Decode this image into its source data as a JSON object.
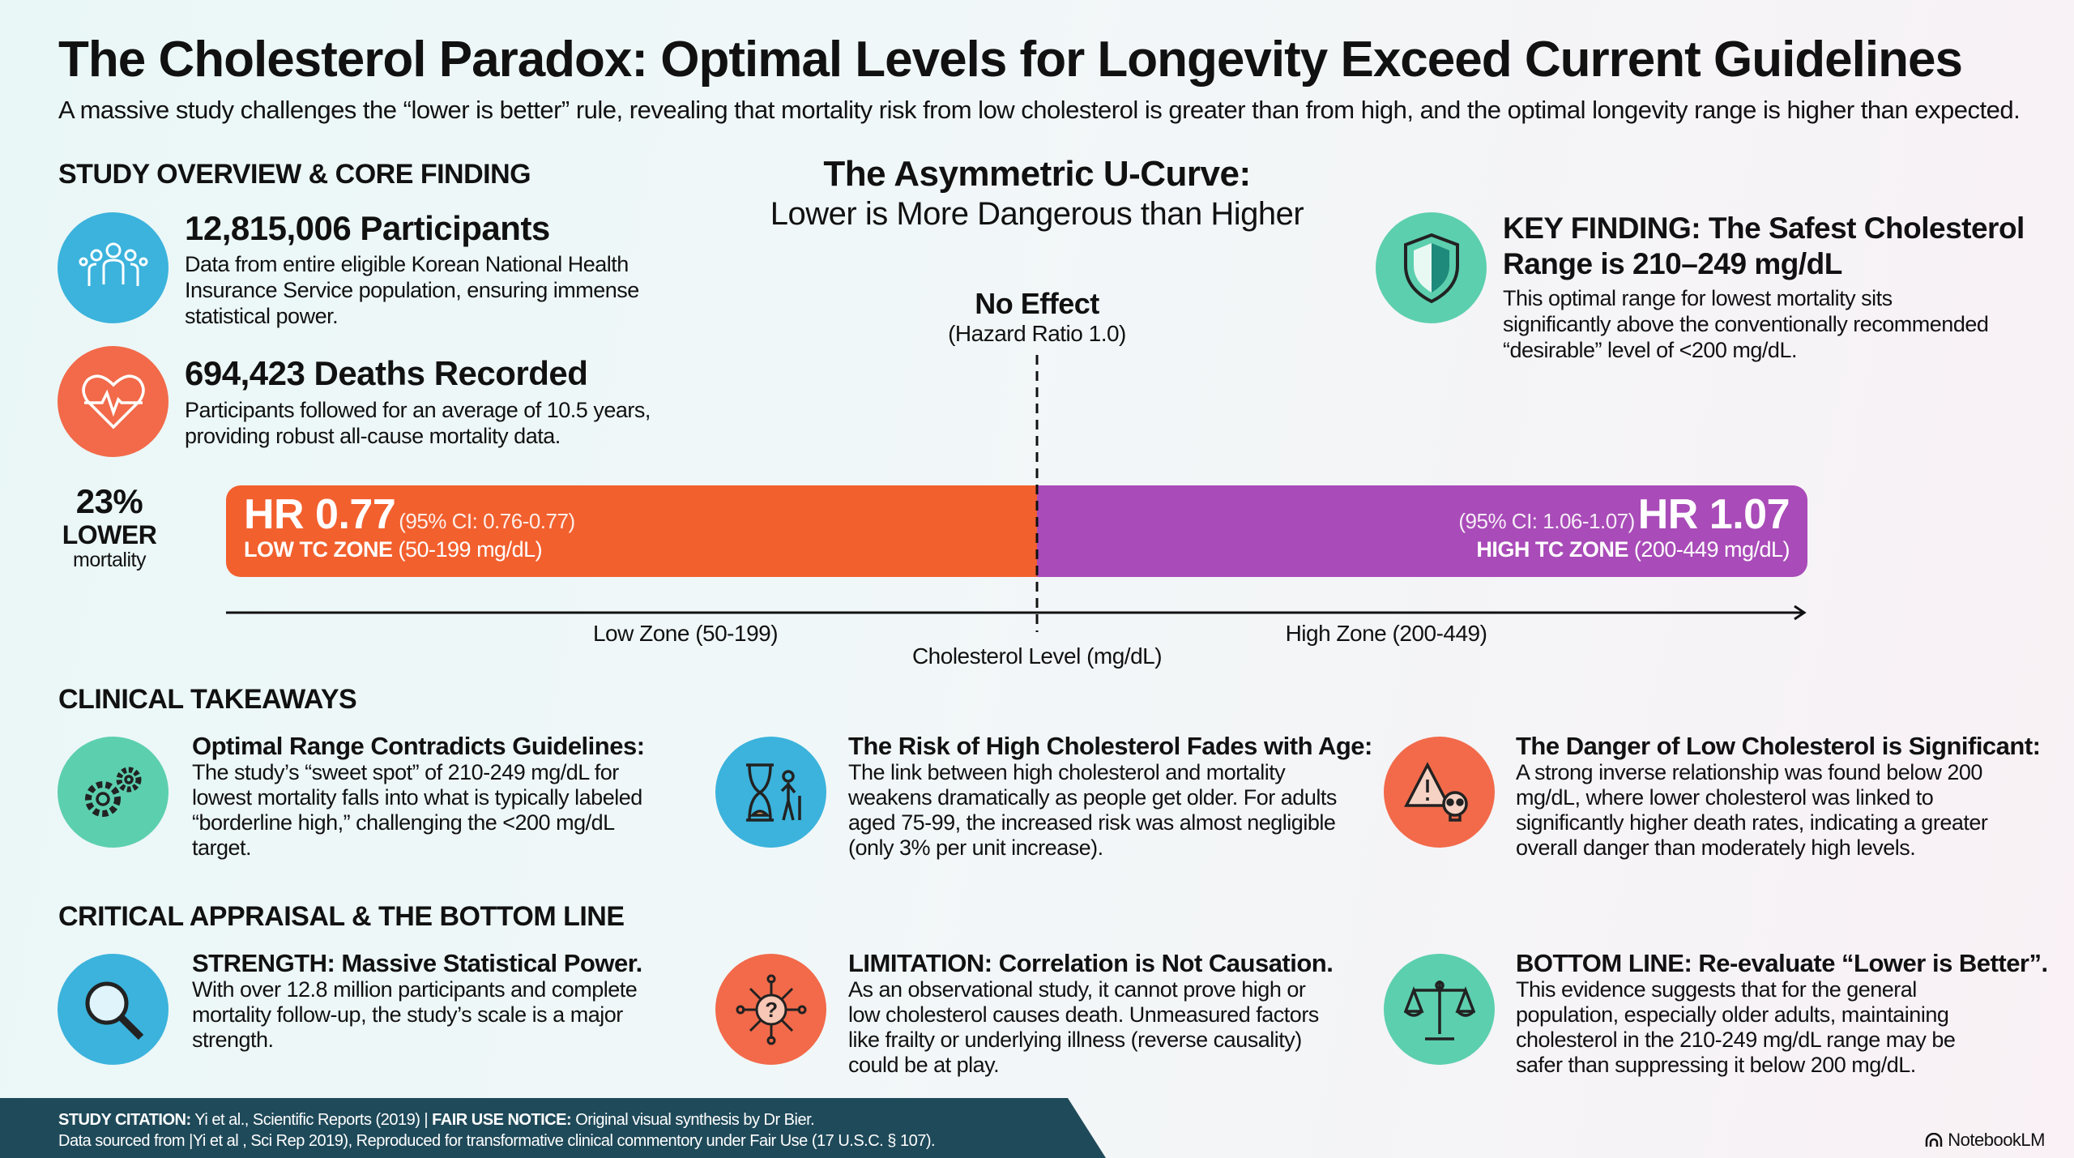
{
  "title": "The Cholesterol Paradox: Optimal Levels for Longevity Exceed Current Guidelines",
  "subtitle": "A massive study challenges the “lower is better” rule, revealing that mortality risk from low cholesterol is greater than from high, and the optimal longevity range is higher than expected.",
  "overview": {
    "heading": "STUDY OVERVIEW & CORE FINDING",
    "participants": {
      "title": "12,815,006 Participants",
      "text": "Data from entire eligible Korean National Health Insurance Service population, ensuring immense statistical power.",
      "icon": "people-group-icon"
    },
    "deaths": {
      "title": "694,423 Deaths Recorded",
      "text": "Participants followed for an average of 10.5 years, providing robust all-cause mortality data.",
      "icon": "heart-pulse-icon"
    }
  },
  "curve": {
    "title": "The Asymmetric U-Curve:",
    "subtitle": "Lower is More Dangerous than Higher",
    "no_effect": "No Effect",
    "no_effect_sub": "(Hazard Ratio 1.0)"
  },
  "key_finding": {
    "title1": "KEY FINDING: The Safest Cholesterol",
    "title2": "Range is 210–249 mg/dL",
    "text": "This optimal range for lowest mortality sits significantly above the conventionally recommended “desirable” level of <200 mg/dL.",
    "icon": "shield-icon"
  },
  "lower_stat": {
    "pct": "23%",
    "label": "LOWER",
    "sub": "mortality"
  },
  "low_bar": {
    "hr": "HR 0.77",
    "ci": "(95% CI: 0.76-0.77)",
    "zone": "LOW TC ZONE",
    "range": "(50-199 mg/dL)",
    "color": "#f2602e"
  },
  "high_bar": {
    "hr": "HR 1.07",
    "ci": "(95% CI: 1.06-1.07)",
    "zone": "HIGH TC ZONE",
    "range": "(200-449 mg/dL)",
    "color": "#a94bb8"
  },
  "axis": {
    "low": "Low Zone (50-199)",
    "high": "High Zone (200-449)",
    "label": "Cholesterol Level (mg/dL)"
  },
  "takeaways": {
    "heading": "CLINICAL TAKEAWAYS",
    "items": [
      {
        "title": "Optimal Range Contradicts Guidelines:",
        "text": "The study’s “sweet spot” of 210-249 mg/dL for lowest mortality falls into what is typically labeled “borderline high,” challenging the <200 mg/dL target.",
        "icon": "gears-icon"
      },
      {
        "title": "The Risk of High Cholesterol Fades with Age:",
        "text": "The link between high cholesterol and mortality weakens dramatically as people get older. For adults aged 75-99, the increased risk was almost negligible (only 3% per unit increase).",
        "icon": "hourglass-elder-icon"
      },
      {
        "title": "The Danger of Low Cholesterol is Significant:",
        "text": "A strong inverse relationship was found below 200 mg/dL, where lower cholesterol was linked to significantly higher death rates, indicating a greater overall danger than moderately high levels.",
        "icon": "warning-skull-icon"
      }
    ]
  },
  "appraisal": {
    "heading": "CRITICAL APPRAISAL & THE BOTTOM LINE",
    "items": [
      {
        "title": "STRENGTH: Massive Statistical Power.",
        "text": "With over 12.8 million participants and complete mortality follow-up, the study’s scale is a major strength.",
        "icon": "magnifier-icon"
      },
      {
        "title": "LIMITATION: Correlation is Not Causation.",
        "text": "As an observational study, it cannot prove high or low cholesterol causes death. Unmeasured factors like frailty or underlying illness (reverse causality) could be at play.",
        "icon": "question-network-icon"
      },
      {
        "title": "BOTTOM LINE: Re-evaluate “Lower is Better”.",
        "text": "This evidence suggests that for the general population, especially older adults, maintaining cholesterol in the 210-249 mg/dL range may be safer than suppressing it below 200 mg/dL.",
        "icon": "scales-icon"
      }
    ]
  },
  "footer": {
    "label1": "STUDY CITATION:",
    "text1": " Yi et al., Scientific Reports (2019) | ",
    "label2": "FAIR USE NOTICE:",
    "text2": " Original visual synthesis by Dr Bier.",
    "line2": "Data sourced from |Yi et al , Sci Rep 2019), Reproduced for transformative clinical commentory under Fair Use (17 U.S.C. § 107).",
    "brand": "NotebookLM"
  }
}
